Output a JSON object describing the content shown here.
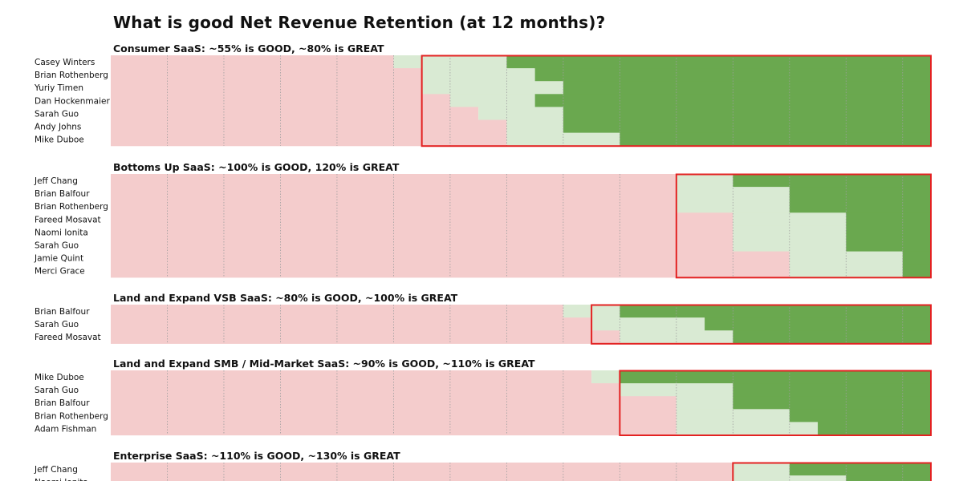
{
  "title": "What is good Net Revenue Retention (at 12 months)?",
  "colors": {
    "below_good": "#f4cccc",
    "good": "#d9ead3",
    "great": "#6aa84f",
    "highlight_box": "#e32222",
    "gridline": "#9e9e9e"
  },
  "chart_data": {
    "type": "heatmap",
    "title": "What is good Net Revenue Retention (at 12 months)?",
    "x_range": [
      0,
      145
    ],
    "x_step": 5,
    "legend": [
      {
        "key": "below_good",
        "label": ""
      },
      {
        "key": "good",
        "label": "GOOD"
      },
      {
        "key": "great",
        "label": "GREAT"
      }
    ],
    "sections": [
      {
        "title": "Consumer SaaS: ~55% is GOOD, ~80% is GREAT",
        "box_from": 55,
        "rows": [
          {
            "name": "Casey Winters",
            "good": 50,
            "great": 70
          },
          {
            "name": "Brian Rothenberg",
            "good": 55,
            "great": 75
          },
          {
            "name": "Yuriy Timen",
            "good": 55,
            "great": 80
          },
          {
            "name": "Dan Hockenmaier",
            "good": 60,
            "great": 75
          },
          {
            "name": "Sarah Guo",
            "good": 65,
            "great": 80
          },
          {
            "name": "Andy Johns",
            "good": 70,
            "great": 80
          },
          {
            "name": "Mike Duboe",
            "good": 70,
            "great": 90
          }
        ]
      },
      {
        "title": "Bottoms Up SaaS: ~100% is GOOD, 120% is GREAT",
        "box_from": 100,
        "rows": [
          {
            "name": "Jeff Chang",
            "good": 100,
            "great": 110
          },
          {
            "name": "Brian Balfour",
            "good": 100,
            "great": 120
          },
          {
            "name": "Brian Rothenberg",
            "good": 100,
            "great": 120
          },
          {
            "name": "Fareed Mosavat",
            "good": 110,
            "great": 130
          },
          {
            "name": "Naomi Ionita",
            "good": 110,
            "great": 130
          },
          {
            "name": "Sarah Guo",
            "good": 110,
            "great": 130
          },
          {
            "name": "Jamie Quint",
            "good": 120,
            "great": 140
          },
          {
            "name": "Merci Grace",
            "good": 120,
            "great": 140
          }
        ]
      },
      {
        "title": "Land and Expand VSB SaaS: ~80% is GOOD, ~100% is GREAT",
        "box_from": 85,
        "rows": [
          {
            "name": "Brian Balfour",
            "good": 80,
            "great": 90
          },
          {
            "name": "Sarah Guo",
            "good": 85,
            "great": 105
          },
          {
            "name": "Fareed Mosavat",
            "good": 90,
            "great": 110
          }
        ]
      },
      {
        "title": "Land and Expand SMB / Mid-Market SaaS: ~90% is GOOD, ~110% is GREAT",
        "box_from": 90,
        "rows": [
          {
            "name": "Mike Duboe",
            "good": 85,
            "great": 90
          },
          {
            "name": "Sarah Guo",
            "good": 90,
            "great": 110
          },
          {
            "name": "Brian Balfour",
            "good": 100,
            "great": 110
          },
          {
            "name": "Brian Rothenberg",
            "good": 100,
            "great": 120
          },
          {
            "name": "Adam Fishman",
            "good": 100,
            "great": 125
          }
        ]
      },
      {
        "title": "Enterprise SaaS: ~110% is GOOD, ~130% is GREAT",
        "box_from": 110,
        "rows": [
          {
            "name": "Jeff Chang",
            "good": 110,
            "great": 120
          },
          {
            "name": "Naomi Ionita",
            "good": 110,
            "great": 130
          }
        ]
      }
    ]
  }
}
